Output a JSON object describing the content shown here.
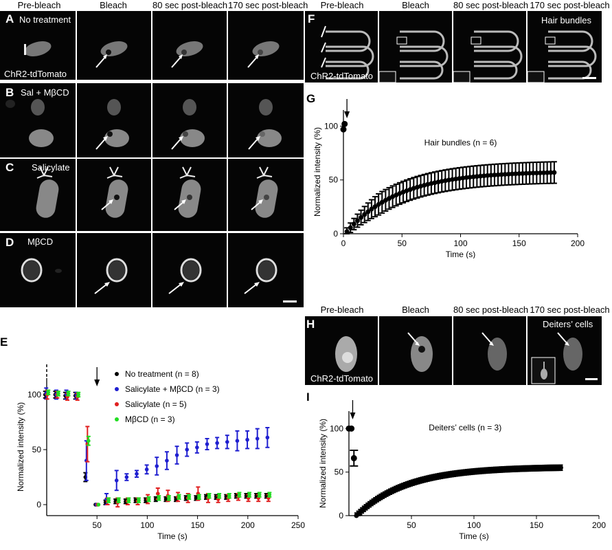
{
  "headers": {
    "pre": "Pre-bleach",
    "bleach": "Bleach",
    "p80": "80 sec post-bleach",
    "p170": "170 sec post-bleach"
  },
  "panels": {
    "A": {
      "letter": "A",
      "label": "No treatment",
      "sublabel": "ChR2-tdTomato"
    },
    "B": {
      "letter": "B",
      "label": "Sal + MβCD"
    },
    "C": {
      "letter": "C",
      "label": "Salicylate"
    },
    "D": {
      "letter": "D",
      "label": "MβCD"
    },
    "E": {
      "letter": "E"
    },
    "F": {
      "letter": "F",
      "label": "Hair bundles",
      "sublabel": "ChR2-tdTomato"
    },
    "G": {
      "letter": "G"
    },
    "H": {
      "letter": "H",
      "label": "Deiters’ cells",
      "sublabel": "ChR2-tdTomato"
    },
    "I": {
      "letter": "I"
    }
  },
  "chart_data": [
    {
      "id": "E",
      "type": "scatter",
      "xlabel": "Time (s)",
      "ylabel": "Normalized intensity (%)",
      "xlim": [
        0,
        250
      ],
      "ylim": [
        -10,
        115
      ],
      "xticks": [
        50,
        100,
        150,
        200,
        250
      ],
      "yticks": [
        0,
        50,
        100
      ],
      "bleach_marker_x": 50,
      "legend_position": "top-right",
      "series": [
        {
          "name": "No treatment (n = 8)",
          "color": "#000000",
          "x": [
            0,
            10,
            20,
            30,
            40,
            50,
            60,
            70,
            80,
            90,
            100,
            110,
            120,
            130,
            140,
            150,
            160,
            170,
            180,
            190,
            200,
            210,
            220
          ],
          "y": [
            100,
            100,
            99,
            99,
            25,
            0,
            2,
            3,
            3,
            4,
            4,
            5,
            5,
            5,
            6,
            6,
            7,
            7,
            7,
            8,
            8,
            8,
            8
          ],
          "err": [
            3,
            3,
            3,
            3,
            4,
            0,
            2,
            2,
            2,
            2,
            2,
            2,
            2,
            2,
            2,
            2,
            2,
            2,
            2,
            2,
            2,
            2,
            2
          ]
        },
        {
          "name": "Salicylate + MβCD (n = 3)",
          "color": "#1f1fd0",
          "x": [
            0,
            10,
            20,
            30,
            40,
            50,
            60,
            70,
            80,
            90,
            100,
            110,
            120,
            130,
            140,
            150,
            160,
            170,
            180,
            190,
            200,
            210,
            220
          ],
          "y": [
            101,
            100,
            100,
            99,
            40,
            0,
            5,
            22,
            25,
            28,
            32,
            35,
            40,
            45,
            50,
            52,
            55,
            56,
            57,
            58,
            59,
            60,
            61
          ],
          "err": [
            5,
            4,
            4,
            3,
            18,
            0,
            5,
            9,
            3,
            3,
            4,
            8,
            8,
            8,
            6,
            5,
            5,
            5,
            6,
            9,
            8,
            9,
            9
          ]
        },
        {
          "name": "Salicylate (n = 5)",
          "color": "#e02020",
          "x": [
            0,
            10,
            20,
            30,
            40,
            50,
            60,
            70,
            80,
            90,
            100,
            110,
            120,
            130,
            140,
            150,
            160,
            170,
            180,
            190,
            200,
            210,
            220
          ],
          "y": [
            100,
            100,
            98,
            98,
            55,
            0,
            3,
            2,
            3,
            3,
            5,
            10,
            8,
            7,
            6,
            10,
            6,
            5,
            6,
            7,
            6,
            6,
            6
          ],
          "err": [
            4,
            3,
            3,
            3,
            16,
            0,
            3,
            4,
            3,
            3,
            4,
            5,
            5,
            4,
            4,
            6,
            4,
            3,
            3,
            3,
            3,
            3,
            3
          ]
        },
        {
          "name": "MβCD (n = 3)",
          "color": "#22dd22",
          "x": [
            0,
            10,
            20,
            30,
            40,
            50,
            60,
            70,
            80,
            90,
            100,
            110,
            120,
            130,
            140,
            150,
            160,
            170,
            180,
            190,
            200,
            210,
            220
          ],
          "y": [
            102,
            101,
            101,
            100,
            58,
            0,
            4,
            4,
            4,
            4,
            5,
            6,
            6,
            7,
            7,
            7,
            8,
            8,
            8,
            9,
            9,
            9,
            9
          ],
          "err": [
            2,
            2,
            2,
            2,
            4,
            0,
            2,
            2,
            2,
            2,
            2,
            2,
            2,
            2,
            2,
            2,
            2,
            2,
            2,
            2,
            2,
            2,
            2
          ]
        }
      ]
    },
    {
      "id": "G",
      "type": "scatter",
      "title": "Hair bundles (n = 6)",
      "xlabel": "Time (s)",
      "ylabel": "Normalized intensity (%)",
      "xlim": [
        0,
        200
      ],
      "ylim": [
        0,
        115
      ],
      "xticks": [
        0,
        50,
        100,
        150,
        200
      ],
      "yticks": [
        0,
        50,
        100
      ],
      "bleach_marker_x": 3,
      "series": [
        {
          "name": "Hair bundles",
          "color": "#000000",
          "pre": [
            [
              0,
              97
            ],
            [
              1,
              102
            ]
          ],
          "recovery": {
            "t_start": 3,
            "t_end": 180,
            "step": 3,
            "plateau": 56,
            "tau": 45,
            "err": 10
          }
        }
      ]
    },
    {
      "id": "I",
      "type": "scatter",
      "title": "Deiters’ cells (n = 3)",
      "xlabel": "Time (s)",
      "ylabel": "Normalized intensity (%)",
      "xlim": [
        0,
        200
      ],
      "ylim": [
        0,
        120
      ],
      "xticks": [
        50,
        100,
        150,
        200
      ],
      "yticks": [
        0,
        50,
        100
      ],
      "bleach_marker_x": 3,
      "series": [
        {
          "name": "Deiters’ cells",
          "color": "#000000",
          "pre": [
            [
              0,
              100
            ],
            [
              2,
              100
            ],
            [
              4,
              66
            ]
          ],
          "pre_err": [
            2,
            2,
            9
          ],
          "recovery": {
            "t_start": 6,
            "t_end": 170,
            "step": 1.5,
            "plateau": 56,
            "tau": 40,
            "err": 3
          }
        }
      ]
    }
  ]
}
